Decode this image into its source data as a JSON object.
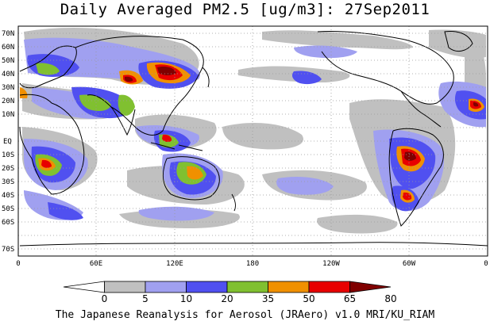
{
  "title": "Daily Averaged PM2.5 [ug/m3]: 27Sep2011",
  "footer": "The Japanese Reanalysis for Aerosol (JRAero) v1.0 MRI/KU_RIAM",
  "lat_labels": [
    "70N",
    "60N",
    "50N",
    "40N",
    "30N",
    "20N",
    "10N",
    "EQ",
    "10S",
    "20S",
    "30S",
    "40S",
    "50S",
    "60S",
    "70S"
  ],
  "lon_labels": [
    "0",
    "60E",
    "120E",
    "180",
    "120W",
    "60W",
    "0"
  ],
  "colorbar": {
    "levels": [
      "0",
      "5",
      "10",
      "20",
      "35",
      "50",
      "65",
      "80"
    ],
    "colors": [
      "#ffffff",
      "#c0c0c0",
      "#a0a0f0",
      "#5050f0",
      "#80c030",
      "#f09000",
      "#e80000",
      "#800000"
    ]
  }
}
